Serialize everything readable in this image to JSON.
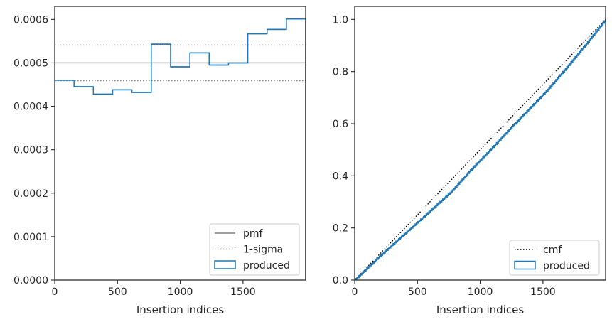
{
  "chart_data": [
    {
      "type": "histogram",
      "xlabel": "Insertion indices",
      "ylabel": "",
      "xlim": [
        0,
        1999
      ],
      "ylim": [
        0,
        0.00063
      ],
      "xticks": [
        "0",
        "500",
        "1000",
        "1500"
      ],
      "xtick_values": [
        0,
        500,
        1000,
        1500
      ],
      "yticks": [
        "0.0000",
        "0.0001",
        "0.0002",
        "0.0003",
        "0.0004",
        "0.0005",
        "0.0006"
      ],
      "ytick_values": [
        0,
        0.0001,
        0.0002,
        0.0003,
        0.0004,
        0.0005,
        0.0006
      ],
      "grid": false,
      "legend_position": "lower-right",
      "reference_lines": [
        {
          "name": "pmf",
          "value": 0.0005,
          "style": "solid",
          "color": "#808080"
        },
        {
          "name": "1-sigma",
          "value": 0.000459,
          "style": "dotted",
          "color": "#808080"
        },
        {
          "name": "1-sigma",
          "value": 0.000541,
          "style": "dotted",
          "color": "#808080"
        }
      ],
      "series": [
        {
          "name": "produced",
          "style": "step",
          "color": "#1f77b4",
          "bin_edges": [
            0,
            153.8,
            307.6,
            461.4,
            615.2,
            769.0,
            922.8,
            1076.6,
            1230.4,
            1384.2,
            1538.0,
            1691.8,
            1845.6,
            1999
          ],
          "values": [
            0.00046,
            0.000445,
            0.000428,
            0.000438,
            0.000432,
            0.000543,
            0.000491,
            0.000523,
            0.000495,
            0.0005,
            0.000567,
            0.000577,
            0.000601
          ]
        }
      ],
      "legend": [
        {
          "label": "pmf",
          "marker": "line-solid",
          "color": "#808080"
        },
        {
          "label": "1-sigma",
          "marker": "line-dotted",
          "color": "#808080"
        },
        {
          "label": "produced",
          "marker": "box",
          "color": "#1f77b4"
        }
      ]
    },
    {
      "type": "line",
      "xlabel": "Insertion indices",
      "ylabel": "",
      "xlim": [
        0,
        1999
      ],
      "ylim": [
        0,
        1.05
      ],
      "xticks": [
        "0",
        "500",
        "1000",
        "1500"
      ],
      "xtick_values": [
        0,
        500,
        1000,
        1500
      ],
      "yticks": [
        "0.0",
        "0.2",
        "0.4",
        "0.6",
        "0.8",
        "1.0"
      ],
      "ytick_values": [
        0,
        0.2,
        0.4,
        0.6,
        0.8,
        1.0
      ],
      "grid": false,
      "legend_position": "lower-right",
      "series": [
        {
          "name": "cmf",
          "style": "dotted",
          "color": "#000000",
          "x": [
            0,
            1999
          ],
          "y": [
            0,
            1.0
          ]
        },
        {
          "name": "produced",
          "style": "step",
          "color": "#1f77b4",
          "x": [
            0,
            153.8,
            307.6,
            461.4,
            615.2,
            769.0,
            922.8,
            1076.6,
            1230.4,
            1384.2,
            1538.0,
            1691.8,
            1845.6,
            1999
          ],
          "y": [
            0,
            0.071,
            0.139,
            0.205,
            0.272,
            0.339,
            0.422,
            0.498,
            0.578,
            0.654,
            0.731,
            0.818,
            0.907,
            1.0
          ]
        }
      ],
      "legend": [
        {
          "label": "cmf",
          "marker": "line-dotted",
          "color": "#000000"
        },
        {
          "label": "produced",
          "marker": "box",
          "color": "#1f77b4"
        }
      ]
    }
  ]
}
